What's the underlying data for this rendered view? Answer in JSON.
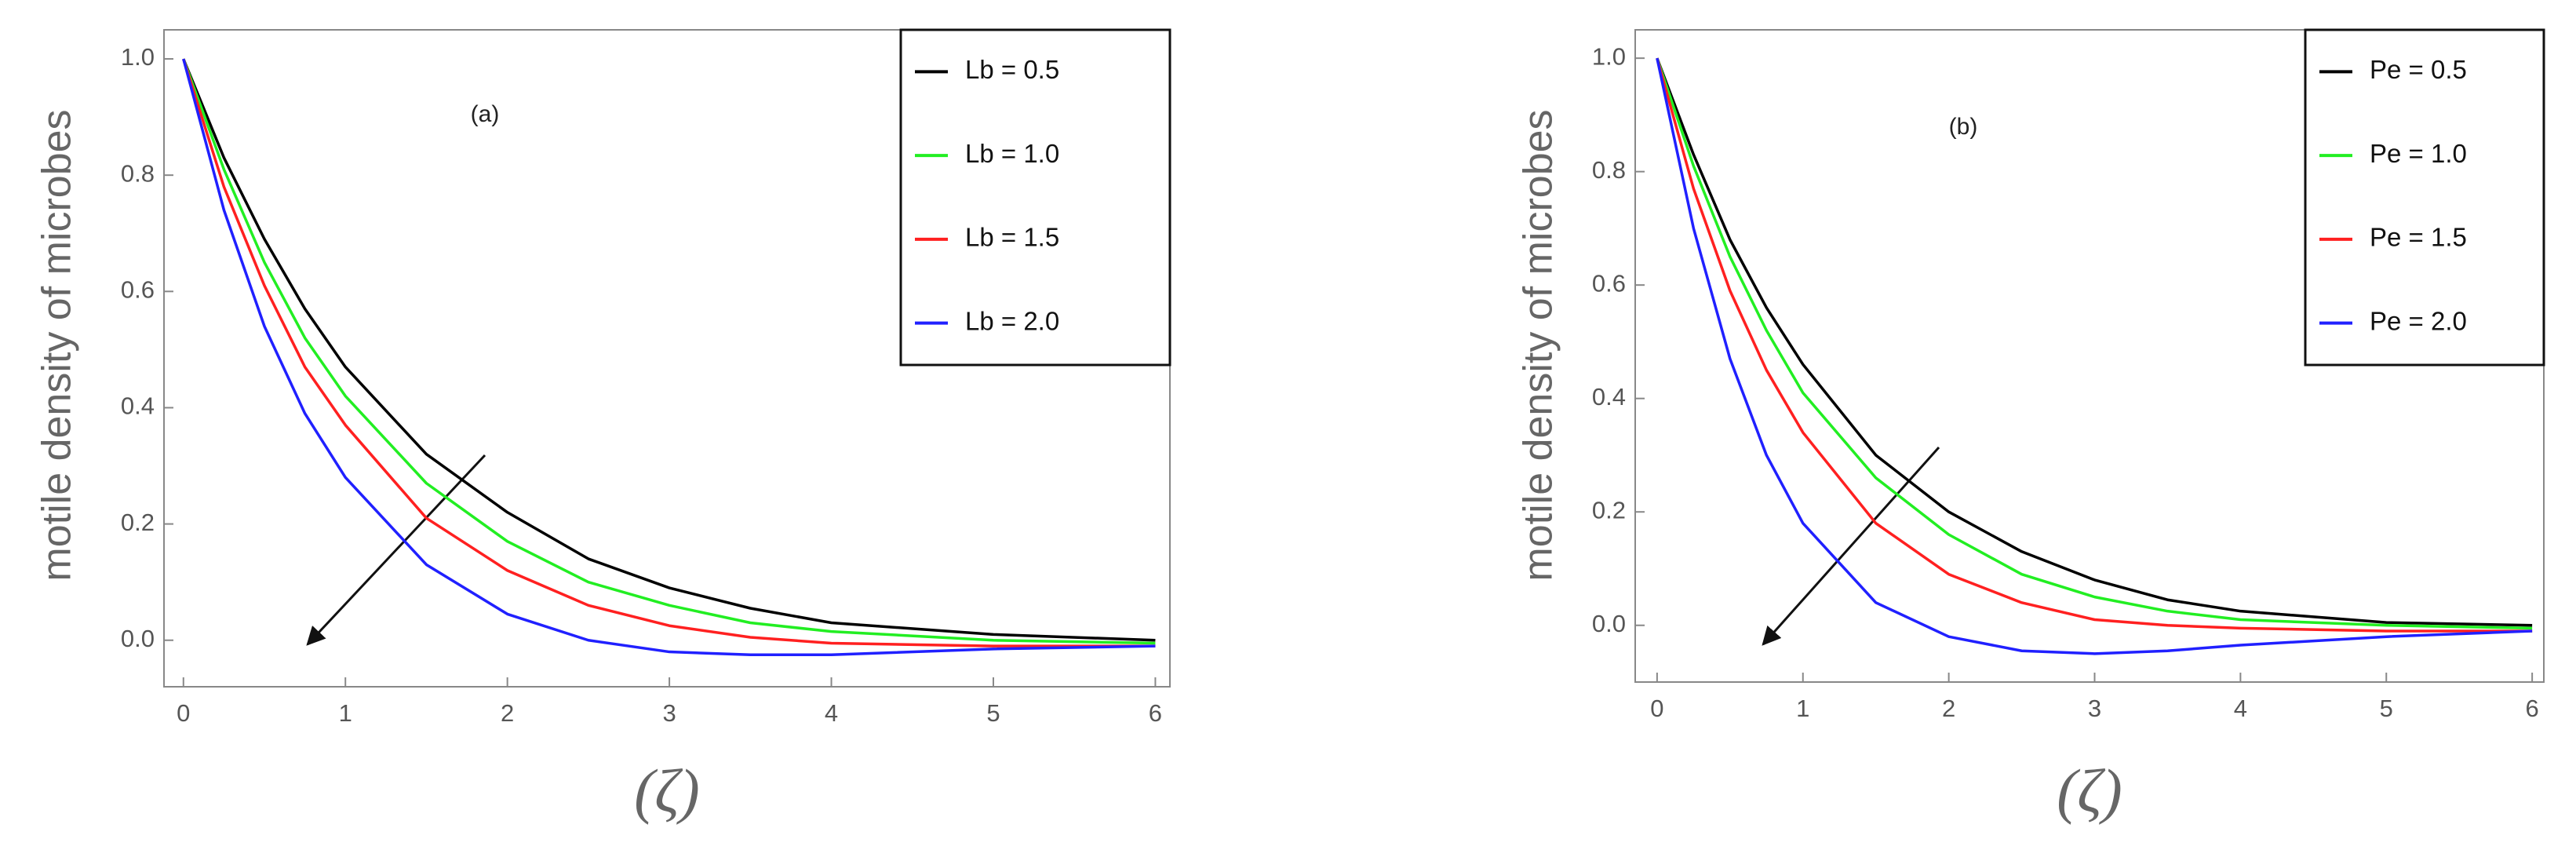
{
  "chart_data": [
    {
      "type": "line",
      "annotation": "(a)",
      "xlabel": "(ζ)",
      "ylabel": "motile density of microbes",
      "x": [
        0,
        0.25,
        0.5,
        0.75,
        1,
        1.5,
        2,
        2.5,
        3,
        3.5,
        4,
        5,
        6
      ],
      "series": [
        {
          "name": "Lb = 0.5",
          "color": "#000000",
          "values": [
            1,
            0.83,
            0.69,
            0.57,
            0.47,
            0.32,
            0.22,
            0.14,
            0.09,
            0.055,
            0.03,
            0.01,
            0
          ]
        },
        {
          "name": "Lb = 1.0",
          "color": "#22ee22",
          "values": [
            1,
            0.81,
            0.65,
            0.52,
            0.42,
            0.27,
            0.17,
            0.1,
            0.06,
            0.03,
            0.015,
            0,
            -0.005
          ]
        },
        {
          "name": "Lb = 1.5",
          "color": "#ff2020",
          "values": [
            1,
            0.78,
            0.61,
            0.47,
            0.37,
            0.21,
            0.12,
            0.06,
            0.025,
            0.005,
            -0.005,
            -0.01,
            -0.01
          ]
        },
        {
          "name": "Lb = 2.0",
          "color": "#2020ff",
          "values": [
            1,
            0.74,
            0.54,
            0.39,
            0.28,
            0.13,
            0.045,
            0,
            -0.02,
            -0.025,
            -0.025,
            -0.015,
            -0.01
          ]
        }
      ],
      "xlim": [
        -0.12,
        6.09
      ],
      "ylim": [
        -0.08,
        1.05
      ],
      "xticks": [
        0,
        1,
        2,
        3,
        4,
        5,
        6
      ],
      "yticks": [
        {
          "value": 0,
          "label": "0.0"
        },
        {
          "value": 0.2,
          "label": "0.2"
        },
        {
          "value": 0.4,
          "label": "0.4"
        },
        {
          "value": 0.6,
          "label": "0.6"
        },
        {
          "value": 0.8,
          "label": "0.8"
        },
        {
          "value": 1,
          "label": "1.0"
        }
      ],
      "legend": "upper right"
    },
    {
      "type": "line",
      "annotation": "(b)",
      "xlabel": "(ζ)",
      "ylabel": "motile density of microbes",
      "x": [
        0,
        0.25,
        0.5,
        0.75,
        1,
        1.5,
        2,
        2.5,
        3,
        3.5,
        4,
        5,
        6
      ],
      "series": [
        {
          "name": "Pe = 0.5",
          "color": "#000000",
          "values": [
            1,
            0.83,
            0.68,
            0.56,
            0.46,
            0.3,
            0.2,
            0.13,
            0.08,
            0.045,
            0.025,
            0.005,
            0
          ]
        },
        {
          "name": "Pe = 1.0",
          "color": "#22ee22",
          "values": [
            1,
            0.81,
            0.65,
            0.52,
            0.41,
            0.26,
            0.16,
            0.09,
            0.05,
            0.025,
            0.01,
            0,
            -0.005
          ]
        },
        {
          "name": "Pe = 1.5",
          "color": "#ff2020",
          "values": [
            1,
            0.77,
            0.59,
            0.45,
            0.34,
            0.18,
            0.09,
            0.04,
            0.01,
            0,
            -0.005,
            -0.01,
            -0.01
          ]
        },
        {
          "name": "Pe = 2.0",
          "color": "#2020ff",
          "values": [
            1,
            0.7,
            0.47,
            0.3,
            0.18,
            0.04,
            -0.02,
            -0.045,
            -0.05,
            -0.045,
            -0.035,
            -0.02,
            -0.01
          ]
        }
      ],
      "xlim": [
        -0.15,
        6.08
      ],
      "ylim": [
        -0.1,
        1.05
      ],
      "xticks": [
        0,
        1,
        2,
        3,
        4,
        5,
        6
      ],
      "yticks": [
        {
          "value": 0,
          "label": "0.0"
        },
        {
          "value": 0.2,
          "label": "0.2"
        },
        {
          "value": 0.4,
          "label": "0.4"
        },
        {
          "value": 0.6,
          "label": "0.6"
        },
        {
          "value": 0.8,
          "label": "0.8"
        },
        {
          "value": 1,
          "label": "1.0"
        }
      ],
      "legend": "upper right"
    }
  ]
}
